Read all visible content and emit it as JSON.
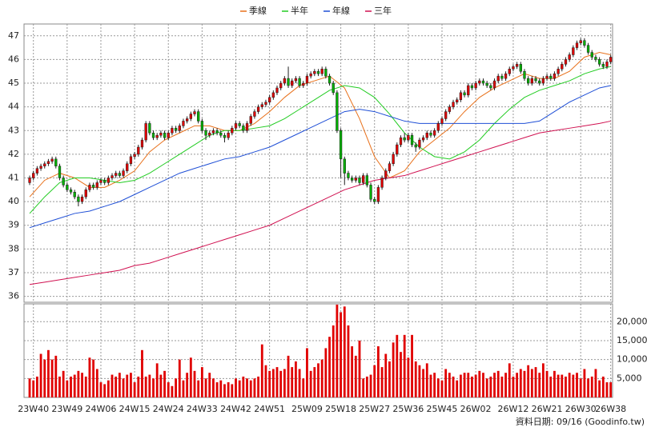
{
  "chart_data": {
    "type": "candlestick",
    "legend": "top",
    "grid": true,
    "xlim": [
      -1.5,
      155.5
    ],
    "xticks": [
      {
        "value": 1,
        "label": "23W40"
      },
      {
        "value": 10,
        "label": "23W49"
      },
      {
        "value": 19,
        "label": "24W06"
      },
      {
        "value": 28,
        "label": "24W15"
      },
      {
        "value": 37,
        "label": "24W24"
      },
      {
        "value": 46,
        "label": "24W33"
      },
      {
        "value": 55,
        "label": "24W42"
      },
      {
        "value": 64,
        "label": "24W51"
      },
      {
        "value": 74,
        "label": "25W09"
      },
      {
        "value": 83,
        "label": "25W18"
      },
      {
        "value": 92,
        "label": "25W27"
      },
      {
        "value": 101,
        "label": "25W36"
      },
      {
        "value": 110,
        "label": "25W45"
      },
      {
        "value": 119,
        "label": "26W02"
      },
      {
        "value": 129,
        "label": "26W12"
      },
      {
        "value": 138,
        "label": "26W21"
      },
      {
        "value": 147,
        "label": "26W30"
      },
      {
        "value": 155,
        "label": "26W38"
      }
    ],
    "ylim": [
      35.75,
      47.5
    ],
    "yticks": [
      36,
      37,
      38,
      39,
      40,
      41,
      42,
      43,
      44,
      45,
      46,
      47
    ],
    "up_color": "#e00000",
    "down_color": "#00b000",
    "candles": {
      "open": [
        40.8,
        41.0,
        41.2,
        41.4,
        41.5,
        41.6,
        41.7,
        41.8,
        41.5,
        41.0,
        40.7,
        40.5,
        40.4,
        40.2,
        40.0,
        40.2,
        40.5,
        40.7,
        40.6,
        40.8,
        40.9,
        40.8,
        41.0,
        41.1,
        41.2,
        41.1,
        41.3,
        41.6,
        41.9,
        42.0,
        42.3,
        42.6,
        43.3,
        42.9,
        42.7,
        42.8,
        42.9,
        42.7,
        42.9,
        43.1,
        43.0,
        43.2,
        43.4,
        43.5,
        43.7,
        43.8,
        43.4,
        43.0,
        42.8,
        42.9,
        43.0,
        42.9,
        42.8,
        42.7,
        42.9,
        43.1,
        43.3,
        43.2,
        43.0,
        43.3,
        43.6,
        43.8,
        44.0,
        44.1,
        44.2,
        44.4,
        44.6,
        44.8,
        45.0,
        45.2,
        44.9,
        45.1,
        45.2,
        44.9,
        45.0,
        45.3,
        45.4,
        45.5,
        45.4,
        45.6,
        45.3,
        45.0,
        44.6,
        43.0,
        41.8,
        41.2,
        41.0,
        40.9,
        41.0,
        40.8,
        41.1,
        40.7,
        40.1,
        40.0,
        40.6,
        41.0,
        41.3,
        41.6,
        42.0,
        42.4,
        42.7,
        42.6,
        42.8,
        42.4,
        42.3,
        42.6,
        42.7,
        42.9,
        42.8,
        43.0,
        43.3,
        43.5,
        43.8,
        44.0,
        44.2,
        44.3,
        44.6,
        44.5,
        44.9,
        44.8,
        45.0,
        45.1,
        45.0,
        44.9,
        44.8,
        45.1,
        45.3,
        45.2,
        45.4,
        45.6,
        45.7,
        45.8,
        45.5,
        45.2,
        45.0,
        45.2,
        45.1,
        45.0,
        45.2,
        45.3,
        45.2,
        45.4,
        45.6,
        45.8,
        46.0,
        46.2,
        46.5,
        46.7,
        46.8,
        46.6,
        46.3,
        46.1,
        46.0,
        45.8,
        45.7,
        45.9
      ],
      "high": [
        41.1,
        41.3,
        41.5,
        41.6,
        41.7,
        41.8,
        41.9,
        41.9,
        41.6,
        41.1,
        40.8,
        40.6,
        40.5,
        40.3,
        40.3,
        40.6,
        40.8,
        40.8,
        40.9,
        41.0,
        41.0,
        41.1,
        41.2,
        41.3,
        41.3,
        41.4,
        41.7,
        42.0,
        42.1,
        42.4,
        42.7,
        43.4,
        43.4,
        43.0,
        42.9,
        43.0,
        43.0,
        43.0,
        43.2,
        43.2,
        43.3,
        43.5,
        43.6,
        43.8,
        43.9,
        43.9,
        43.5,
        43.1,
        43.0,
        43.1,
        43.1,
        43.0,
        42.9,
        43.0,
        43.2,
        43.4,
        43.4,
        43.3,
        43.4,
        43.7,
        43.9,
        44.1,
        44.2,
        44.3,
        44.5,
        44.7,
        44.9,
        45.1,
        45.3,
        45.7,
        45.2,
        45.3,
        45.3,
        45.1,
        45.4,
        45.5,
        45.6,
        45.6,
        45.7,
        45.7,
        45.4,
        45.1,
        44.7,
        43.1,
        41.9,
        41.3,
        41.1,
        41.1,
        41.1,
        41.2,
        41.2,
        40.8,
        40.2,
        40.7,
        41.1,
        41.4,
        41.7,
        42.1,
        42.5,
        42.8,
        42.9,
        42.9,
        42.9,
        42.5,
        42.7,
        42.8,
        43.0,
        43.0,
        43.1,
        43.4,
        43.6,
        43.9,
        44.1,
        44.3,
        44.4,
        44.7,
        44.7,
        45.0,
        45.0,
        45.1,
        45.2,
        45.2,
        45.1,
        45.0,
        45.2,
        45.4,
        45.4,
        45.5,
        45.7,
        45.8,
        45.9,
        45.9,
        45.6,
        45.3,
        45.3,
        45.3,
        45.2,
        45.3,
        45.4,
        45.4,
        45.5,
        45.7,
        45.9,
        46.1,
        46.3,
        46.6,
        46.8,
        46.9,
        46.9,
        46.7,
        46.4,
        46.2,
        46.1,
        45.9,
        46.0,
        46.2
      ],
      "low": [
        40.7,
        40.9,
        41.1,
        41.3,
        41.4,
        41.5,
        41.6,
        41.4,
        40.9,
        40.6,
        40.4,
        40.3,
        40.1,
        39.8,
        39.9,
        40.1,
        40.4,
        40.5,
        40.5,
        40.7,
        40.7,
        40.7,
        40.9,
        41.0,
        41.0,
        41.0,
        41.2,
        41.5,
        41.8,
        41.9,
        42.2,
        42.5,
        42.8,
        42.6,
        42.6,
        42.7,
        42.6,
        42.6,
        42.8,
        42.9,
        42.9,
        43.1,
        43.3,
        43.4,
        43.6,
        43.3,
        42.9,
        42.6,
        42.7,
        42.8,
        42.8,
        42.7,
        42.5,
        42.6,
        42.8,
        43.0,
        43.1,
        42.9,
        42.9,
        43.2,
        43.5,
        43.7,
        43.9,
        44.0,
        44.1,
        44.3,
        44.5,
        44.7,
        44.9,
        44.8,
        44.8,
        45.0,
        44.8,
        44.8,
        44.9,
        45.2,
        45.3,
        45.3,
        45.3,
        45.2,
        44.9,
        44.5,
        42.9,
        41.0,
        40.7,
        40.9,
        40.8,
        40.8,
        40.7,
        40.7,
        40.6,
        40.0,
        39.9,
        39.9,
        40.5,
        40.9,
        41.2,
        41.5,
        41.9,
        42.3,
        42.5,
        42.5,
        42.3,
        42.1,
        42.2,
        42.5,
        42.6,
        42.7,
        42.7,
        42.9,
        43.2,
        43.4,
        43.7,
        43.9,
        44.1,
        44.2,
        44.4,
        44.4,
        44.7,
        44.7,
        44.9,
        44.9,
        44.8,
        44.7,
        44.7,
        45.0,
        45.1,
        45.1,
        45.3,
        45.5,
        45.6,
        45.4,
        45.1,
        44.9,
        44.9,
        45.0,
        44.9,
        44.9,
        45.1,
        45.1,
        45.1,
        45.3,
        45.5,
        45.7,
        45.9,
        46.1,
        46.4,
        46.6,
        46.5,
        46.2,
        46.0,
        45.9,
        45.7,
        45.6,
        45.6,
        45.8
      ],
      "close": [
        41.0,
        41.2,
        41.4,
        41.5,
        41.6,
        41.7,
        41.8,
        41.5,
        41.0,
        40.7,
        40.5,
        40.4,
        40.2,
        40.0,
        40.2,
        40.5,
        40.7,
        40.6,
        40.8,
        40.9,
        40.8,
        41.0,
        41.1,
        41.2,
        41.1,
        41.3,
        41.6,
        41.9,
        42.0,
        42.3,
        42.6,
        43.3,
        42.9,
        42.7,
        42.8,
        42.9,
        42.7,
        42.9,
        43.1,
        43.0,
        43.2,
        43.4,
        43.5,
        43.7,
        43.8,
        43.4,
        43.0,
        42.8,
        42.9,
        43.0,
        42.9,
        42.8,
        42.7,
        42.9,
        43.1,
        43.3,
        43.2,
        43.0,
        43.3,
        43.6,
        43.8,
        44.0,
        44.1,
        44.2,
        44.4,
        44.6,
        44.8,
        45.0,
        45.2,
        44.9,
        45.1,
        45.2,
        44.9,
        45.0,
        45.3,
        45.4,
        45.5,
        45.4,
        45.6,
        45.3,
        45.0,
        44.6,
        43.0,
        41.8,
        41.2,
        41.0,
        40.9,
        41.0,
        40.8,
        41.1,
        40.7,
        40.1,
        40.0,
        40.6,
        41.0,
        41.3,
        41.6,
        42.0,
        42.4,
        42.7,
        42.6,
        42.8,
        42.4,
        42.3,
        42.6,
        42.7,
        42.9,
        42.8,
        43.0,
        43.3,
        43.5,
        43.8,
        44.0,
        44.2,
        44.3,
        44.6,
        44.5,
        44.9,
        44.8,
        45.0,
        45.1,
        45.0,
        44.9,
        44.8,
        45.1,
        45.3,
        45.2,
        45.4,
        45.6,
        45.7,
        45.8,
        45.5,
        45.2,
        45.0,
        45.2,
        45.1,
        45.0,
        45.2,
        45.3,
        45.2,
        45.4,
        45.6,
        45.8,
        46.0,
        46.2,
        46.5,
        46.7,
        46.8,
        46.6,
        46.3,
        46.1,
        46.0,
        45.8,
        45.7,
        45.9,
        46.1
      ]
    },
    "ma_x": [
      0,
      4,
      8,
      12,
      16,
      20,
      24,
      28,
      32,
      36,
      40,
      44,
      48,
      52,
      56,
      60,
      64,
      68,
      72,
      76,
      80,
      84,
      88,
      92,
      96,
      100,
      104,
      108,
      112,
      116,
      120,
      124,
      128,
      132,
      136,
      140,
      144,
      148,
      152,
      155
    ],
    "series": [
      {
        "name": "季線",
        "color": "#e8701a",
        "values": [
          40.2,
          40.9,
          41.2,
          41.0,
          40.6,
          40.6,
          40.9,
          41.3,
          42.1,
          42.6,
          42.9,
          43.2,
          43.2,
          43.0,
          43.0,
          43.3,
          43.8,
          44.4,
          44.9,
          45.1,
          45.3,
          44.8,
          43.5,
          41.9,
          41.0,
          41.3,
          42.1,
          42.6,
          43.1,
          43.8,
          44.4,
          44.8,
          45.1,
          45.4,
          45.2,
          45.2,
          45.5,
          46.1,
          46.3,
          46.2
        ]
      },
      {
        "name": "半年",
        "color": "#22cc22",
        "values": [
          39.5,
          40.2,
          40.8,
          41.0,
          41.0,
          40.9,
          40.8,
          40.9,
          41.2,
          41.6,
          42.0,
          42.4,
          42.8,
          43.0,
          43.0,
          43.1,
          43.2,
          43.5,
          43.9,
          44.3,
          44.7,
          44.9,
          44.8,
          44.4,
          43.7,
          42.9,
          42.3,
          41.9,
          41.8,
          42.1,
          42.6,
          43.3,
          43.9,
          44.4,
          44.7,
          44.9,
          45.1,
          45.4,
          45.6,
          45.7
        ]
      },
      {
        "name": "年線",
        "color": "#1f4fd6",
        "values": [
          38.9,
          39.1,
          39.3,
          39.5,
          39.6,
          39.8,
          40.0,
          40.3,
          40.6,
          40.9,
          41.2,
          41.4,
          41.6,
          41.8,
          41.9,
          42.1,
          42.3,
          42.6,
          42.9,
          43.2,
          43.5,
          43.8,
          43.9,
          43.8,
          43.6,
          43.4,
          43.3,
          43.3,
          43.3,
          43.3,
          43.3,
          43.3,
          43.3,
          43.3,
          43.4,
          43.8,
          44.2,
          44.5,
          44.8,
          44.9
        ]
      },
      {
        "name": "三年",
        "color": "#d01050",
        "values": [
          36.5,
          36.6,
          36.7,
          36.8,
          36.9,
          37.0,
          37.1,
          37.3,
          37.4,
          37.6,
          37.8,
          38.0,
          38.2,
          38.4,
          38.6,
          38.8,
          39.0,
          39.3,
          39.6,
          39.9,
          40.2,
          40.5,
          40.7,
          40.9,
          41.0,
          41.1,
          41.3,
          41.5,
          41.7,
          41.9,
          42.1,
          42.3,
          42.5,
          42.7,
          42.9,
          43.0,
          43.1,
          43.2,
          43.3,
          43.4
        ]
      }
    ],
    "volume": {
      "color": "#e00000",
      "ylim": [
        0,
        24700
      ],
      "yticks": [
        {
          "value": 5000,
          "label": "5,000"
        },
        {
          "value": 10000,
          "label": "10,000"
        },
        {
          "value": 15000,
          "label": "15,000"
        },
        {
          "value": 20000,
          "label": "20,000"
        }
      ],
      "values": [
        5000,
        4500,
        5500,
        11500,
        10000,
        12500,
        10000,
        11000,
        5500,
        7000,
        4500,
        5500,
        6000,
        7000,
        6500,
        5500,
        10500,
        10000,
        7500,
        4000,
        3500,
        4500,
        6000,
        5500,
        6500,
        5000,
        6000,
        6500,
        4000,
        5500,
        12500,
        5500,
        6000,
        5000,
        9000,
        6000,
        7000,
        4000,
        3000,
        5000,
        10000,
        4500,
        6500,
        10500,
        7000,
        4500,
        8000,
        5000,
        6500,
        5000,
        4000,
        4500,
        3500,
        4000,
        3500,
        5000,
        4500,
        5500,
        5000,
        4500,
        5000,
        5500,
        14000,
        8500,
        7000,
        7500,
        8000,
        7000,
        7500,
        11000,
        8000,
        9500,
        7500,
        5000,
        13000,
        7000,
        8000,
        9000,
        10000,
        13000,
        16000,
        19000,
        24500,
        22500,
        24000,
        19000,
        13500,
        11000,
        15000,
        5000,
        5500,
        6000,
        8500,
        13500,
        8000,
        11500,
        9500,
        14500,
        16500,
        12000,
        16500,
        10500,
        16500,
        9500,
        8500,
        7500,
        9000,
        6000,
        6500,
        5000,
        4500,
        7500,
        6500,
        5500,
        4500,
        6000,
        6500,
        6500,
        5500,
        6000,
        7000,
        6500,
        5000,
        5500,
        6500,
        7000,
        5500,
        6500,
        9000,
        5500,
        6500,
        7500,
        7000,
        8500,
        7500,
        8000,
        6500,
        9000,
        7000,
        5500,
        7000,
        6000,
        6000,
        5500,
        6500,
        6000,
        6500,
        5000,
        7500,
        5000,
        5500,
        7500,
        4500,
        5500,
        4000,
        4000
      ]
    },
    "footnote": "資料日期: 09/16 (Goodinfo.tw)"
  }
}
